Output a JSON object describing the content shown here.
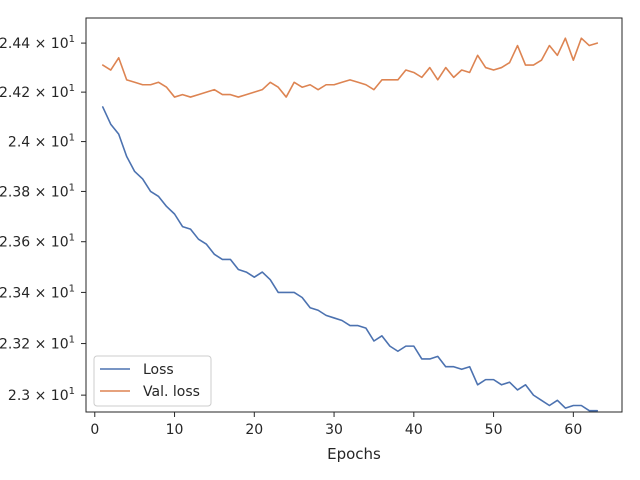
{
  "chart_data": {
    "type": "line",
    "title": "",
    "xlabel": "Epochs",
    "ylabel": "",
    "yscale": "log",
    "xlim": [
      -1.1,
      66.1
    ],
    "ylim": [
      22.935,
      24.503
    ],
    "grid": false,
    "legend_position": "lower-left",
    "x_ticks": [
      0,
      10,
      20,
      30,
      40,
      50,
      60
    ],
    "x_tick_labels": [
      "0",
      "10",
      "20",
      "30",
      "40",
      "50",
      "60"
    ],
    "y_ticks": [
      23.0,
      23.2,
      23.4,
      23.6,
      23.8,
      24.0,
      24.2,
      24.4
    ],
    "y_tick_labels": [
      "2.3 × 10",
      "2.32 × 10",
      "2.34 × 10",
      "2.36 × 10",
      "2.38 × 10",
      "2.4 × 10",
      "2.42 × 10",
      "2.44 × 10"
    ],
    "y_tick_exponent": "1",
    "x": [
      1,
      2,
      3,
      4,
      5,
      6,
      7,
      8,
      9,
      10,
      11,
      12,
      13,
      14,
      15,
      16,
      17,
      18,
      19,
      20,
      21,
      22,
      23,
      24,
      25,
      26,
      27,
      28,
      29,
      30,
      31,
      32,
      33,
      34,
      35,
      36,
      37,
      38,
      39,
      40,
      41,
      42,
      43,
      44,
      45,
      46,
      47,
      48,
      49,
      50,
      51,
      52,
      53,
      54,
      55,
      56,
      57,
      58,
      59,
      60,
      61,
      62,
      63
    ],
    "series": [
      {
        "name": "Loss",
        "color": "#4c72b0",
        "values": [
          24.14,
          24.07,
          24.03,
          23.94,
          23.88,
          23.85,
          23.8,
          23.78,
          23.74,
          23.71,
          23.66,
          23.65,
          23.61,
          23.59,
          23.55,
          23.53,
          23.53,
          23.49,
          23.48,
          23.46,
          23.48,
          23.45,
          23.4,
          23.4,
          23.4,
          23.38,
          23.34,
          23.33,
          23.31,
          23.3,
          23.29,
          23.27,
          23.27,
          23.26,
          23.21,
          23.23,
          23.19,
          23.17,
          23.19,
          23.19,
          23.14,
          23.14,
          23.15,
          23.11,
          23.11,
          23.1,
          23.11,
          23.04,
          23.06,
          23.06,
          23.04,
          23.05,
          23.02,
          23.04,
          23.0,
          22.98,
          22.96,
          22.98,
          22.95,
          22.96,
          22.96,
          22.94,
          22.94
        ]
      },
      {
        "name": "Val. loss",
        "color": "#dd8452",
        "values": [
          24.31,
          24.29,
          24.34,
          24.25,
          24.24,
          24.23,
          24.23,
          24.24,
          24.22,
          24.18,
          24.19,
          24.18,
          24.19,
          24.2,
          24.21,
          24.19,
          24.19,
          24.18,
          24.19,
          24.2,
          24.21,
          24.24,
          24.22,
          24.18,
          24.24,
          24.22,
          24.23,
          24.21,
          24.23,
          24.23,
          24.24,
          24.25,
          24.24,
          24.23,
          24.21,
          24.25,
          24.25,
          24.25,
          24.29,
          24.28,
          24.26,
          24.3,
          24.25,
          24.3,
          24.26,
          24.29,
          24.28,
          24.35,
          24.3,
          24.29,
          24.3,
          24.32,
          24.39,
          24.31,
          24.31,
          24.33,
          24.39,
          24.35,
          24.42,
          24.33,
          24.42,
          24.39,
          24.4
        ]
      }
    ]
  }
}
